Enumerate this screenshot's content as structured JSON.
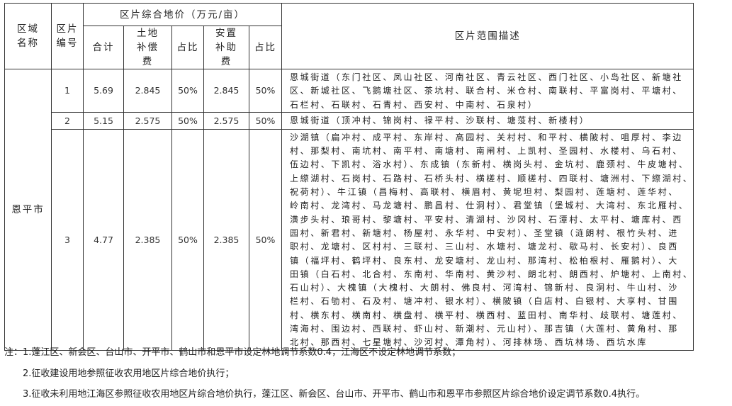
{
  "header": {
    "region_name": "区域名称",
    "zone_no": "区片编号",
    "price_group": "区片综合地价（万元/亩）",
    "total": "合计",
    "land_comp": "土地补偿费",
    "ratio1": "占比",
    "resettle": "安置补助费",
    "ratio2": "占比",
    "scope": "区片范围描述"
  },
  "region": "恩平市",
  "rows": [
    {
      "no": "1",
      "total": "5.69",
      "land": "2.845",
      "ratio1": "50%",
      "resettle": "2.845",
      "ratio2": "50%",
      "lines": [
        "恩城街道（东门社区、凤山社区、河南社区、青云社区、西门社区、小岛社区、新塘社",
        "区、新城社区、飞鹅塘社区、茶坑村、联合村、米仓村、南联村、平富岗村、平塘村、",
        "石栏村、石联村、石青村、西安村、中南村、石泉村）"
      ]
    },
    {
      "no": "2",
      "total": "5.15",
      "land": "2.575",
      "ratio1": "50%",
      "resettle": "2.575",
      "ratio2": "50%",
      "lines": [
        "恩城街道（顶冲村、锦岗村、禄平村、沙联村、塘莈村、新楼村）"
      ]
    },
    {
      "no": "3",
      "total": "4.77",
      "land": "2.385",
      "ratio1": "50%",
      "resettle": "2.385",
      "ratio2": "50%",
      "lines": [
        "沙湖镇（扁冲村、成平村、东岸村、高园村、关村村、和平村、横陂村、咀厚村、李边",
        "村、那梨村、南坑村、南平村、南塘村、南闸村、上凯村、圣园村、水楼村、乌石村、",
        "伍边村、下凯村、浴水村）、东成镇（东新村、横岗头村、金坑村、鹿颈村、牛皮塘村、",
        "上縩湖村、石岗村、石路村、石桥头村、横槎村、顺槎村、四联村、塘洲村、下縩湖村、",
        "祝荷村）、牛江镇（昌梅村、高联村、横眉村、黄坭坦村、梨园村、莲塘村、莲华村、",
        "岭南村、龙湾村、马龙塘村、鹏昌村、仕洞村）、君堂镇（堡城村、大湾村、东北雁村、",
        "潢步头村、琅哥村、黎塘村、平安村、清湖村、沙冈村、石潭村、太平村、塘库村、西",
        "园村、新君村、新塘村、杨屋村、永华村、中安村）、圣堂镇（涟朗村、根竹头村、进",
        "职村、龙塘村、区村村、三联村、三山村、水塘村、塘龙村、歇马村、长安村）、良西",
        "镇（福坪村、鹤坪村、良东村、龙安塘村、龙山村、那湾村、松柏根村、雁鹅村）、大",
        "田镇（白石村、北合村、东南村、华南村、黄沙村、朗北村、朗西村、炉塘村、上南村、",
        "石山村）、大槐镇（大槐村、大朗村、佛良村、河湾村、锦新村、良洞村、牛山村、沙",
        "栏村、石劬村、石及村、塘冲村、银水村）、横陂镇（白店村、白银村、大享村、甘围",
        "村、横东村、横南村、横盘村、横平村、横西村、蓝田村、南华村、歧联村、塘莲村、",
        "湾海村、围边村、西联村、虾山村、新潮村、元山村）、那吉镇（大莲村、黄角村、那",
        "北村、那西村、七星塘村、沙河村、潭角村）、河排林场、西坑林场、西坑水库"
      ]
    }
  ],
  "notes": [
    "注：1.蓬江区、新会区、台山市、开平市、鹤山市和恩平市设定林地调节系数0.4，江海区不设定林地调节系数；",
    "2.征收建设用地参照征收农用地区片综合地价执行；",
    "3.征收未利用地江海区参照征收农用地区片综合地价执行，蓬江区、新会区、台山市、开平市、鹤山市和恩平市参照区片综合地价设定调节系数0.4执行。"
  ]
}
